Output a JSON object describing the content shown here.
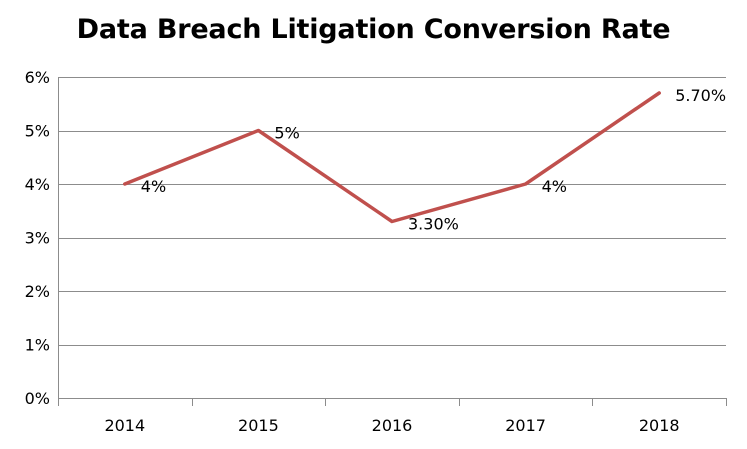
{
  "chart_data": {
    "type": "line",
    "title": "Data Breach Litigation Conversion Rate",
    "xlabel": "",
    "ylabel": "",
    "categories": [
      "2014",
      "2015",
      "2016",
      "2017",
      "2018"
    ],
    "series": [
      {
        "values": [
          4.0,
          5.0,
          3.3,
          4.0,
          5.7
        ],
        "data_labels": [
          "4%",
          "5%",
          "3.30%",
          "4%",
          "5.70%"
        ],
        "color": "#c0504d"
      }
    ],
    "ylim": [
      0,
      6
    ],
    "yticks": [
      0,
      1,
      2,
      3,
      4,
      5,
      6
    ],
    "ytick_labels": [
      "0%",
      "1%",
      "2%",
      "3%",
      "4%",
      "5%",
      "6%"
    ],
    "grid": true,
    "gridline_color": "#8c8c8c",
    "axis_color": "#8c8c8c",
    "legend": "none"
  }
}
